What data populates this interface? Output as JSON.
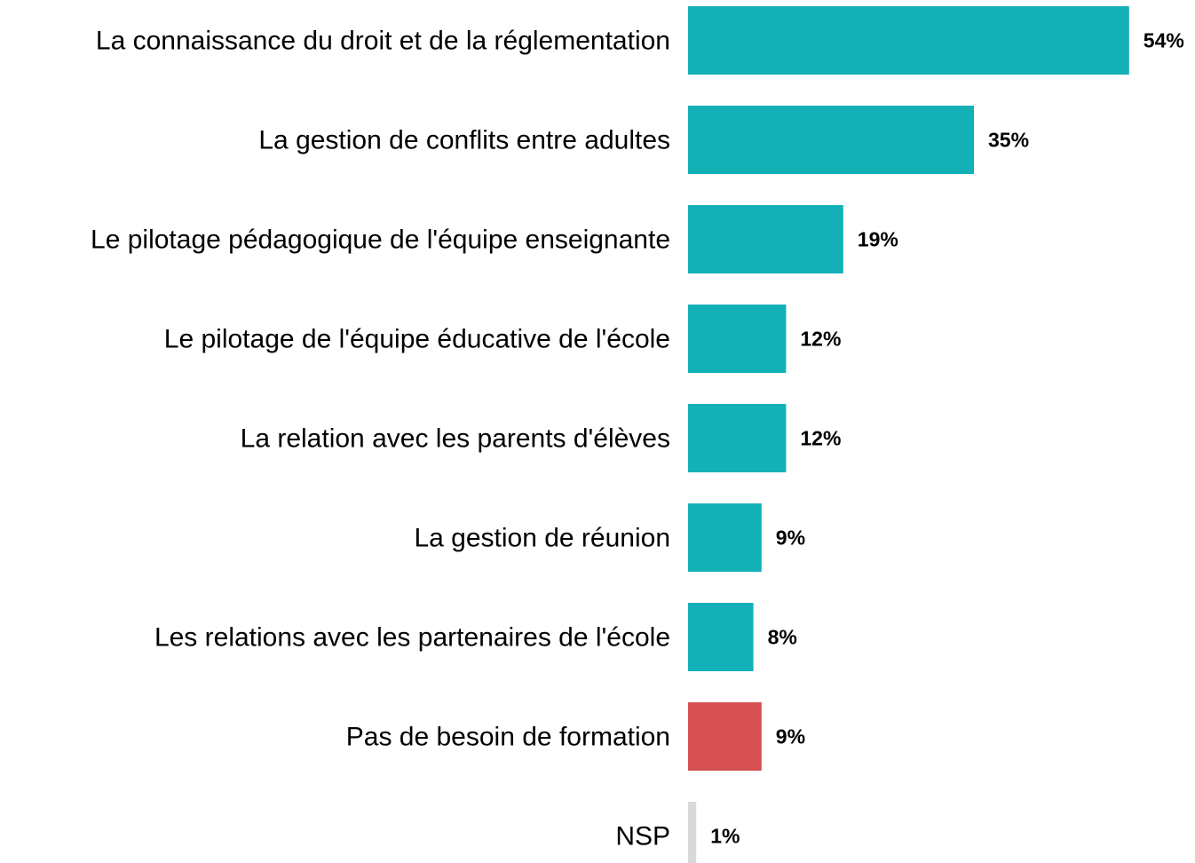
{
  "chart_data": {
    "type": "bar",
    "orientation": "horizontal",
    "categories": [
      "La connaissance du droit et de la réglementation",
      "La gestion de conflits entre adultes",
      "Le pilotage pédagogique de l'équipe enseignante",
      "Le pilotage de l'équipe éducative de l'école",
      "La relation avec les parents d'élèves",
      "La gestion de réunion",
      "Les relations avec les partenaires de l'école",
      "Pas de besoin de formation",
      "NSP"
    ],
    "values": [
      54,
      35,
      19,
      12,
      12,
      9,
      8,
      9,
      1
    ],
    "value_labels": [
      "54%",
      "35%",
      "19%",
      "12%",
      "12%",
      "9%",
      "8%",
      "9%",
      "1%"
    ],
    "colors": [
      "#14b0b7",
      "#14b0b7",
      "#14b0b7",
      "#14b0b7",
      "#14b0b7",
      "#14b0b7",
      "#14b0b7",
      "#d64f51",
      "#d9d9d9"
    ]
  }
}
